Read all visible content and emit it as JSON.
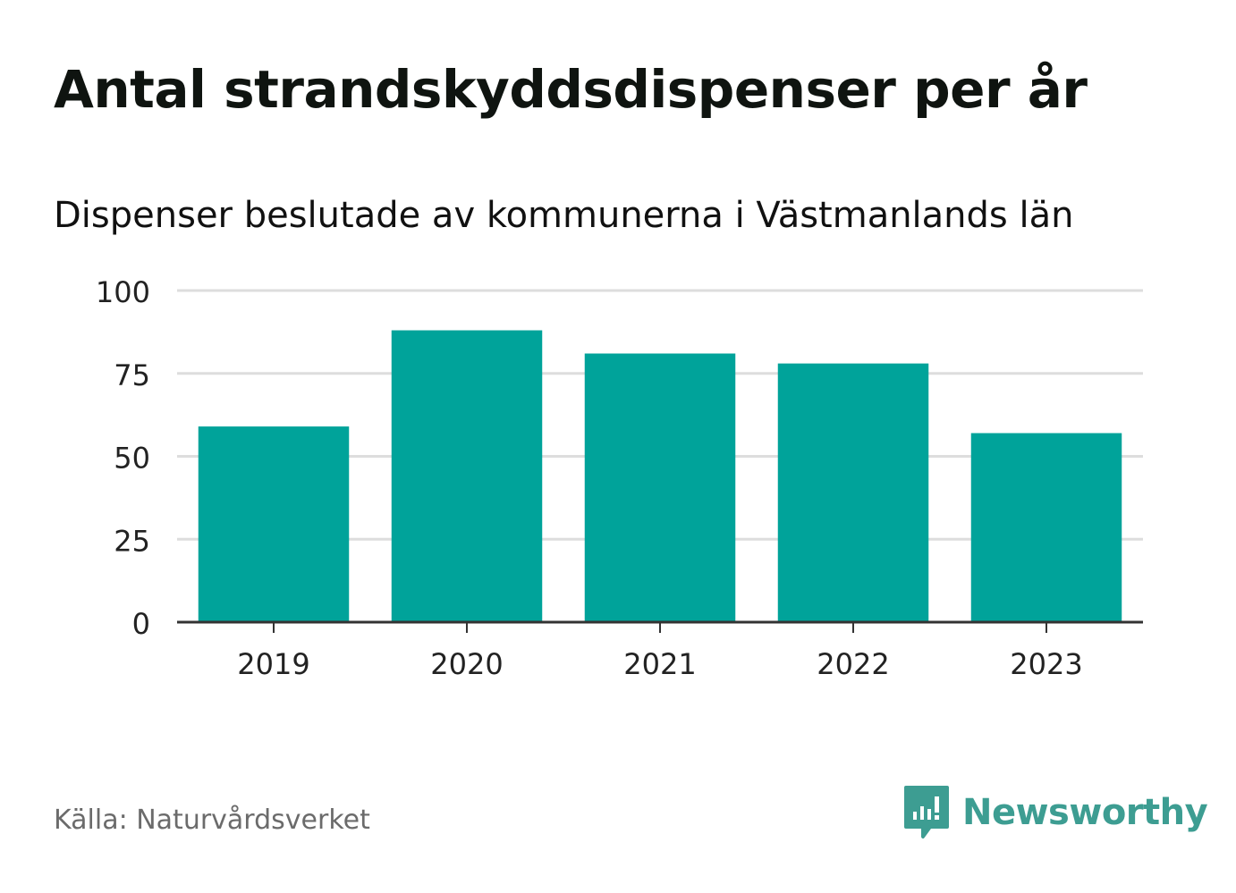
{
  "title": "Antal strandskyddsdispenser per år",
  "subtitle": "Dispenser beslutade av kommunerna i Västmanlands län",
  "source": "Källa: Naturvårdsverket",
  "brand": {
    "name": "Newsworthy",
    "icon": "newsworthy-logo-icon",
    "color": "#3d9d92"
  },
  "colors": {
    "bar": "#00a39a",
    "grid": "#dddddd",
    "axis": "#333333"
  },
  "chart_data": {
    "type": "bar",
    "categories": [
      "2019",
      "2020",
      "2021",
      "2022",
      "2023"
    ],
    "values": [
      59,
      88,
      81,
      78,
      57
    ],
    "yticks": [
      "0",
      "25",
      "50",
      "75",
      "100"
    ],
    "ylim": [
      0,
      100
    ],
    "title": "Antal strandskyddsdispenser per år",
    "xlabel": "",
    "ylabel": ""
  }
}
